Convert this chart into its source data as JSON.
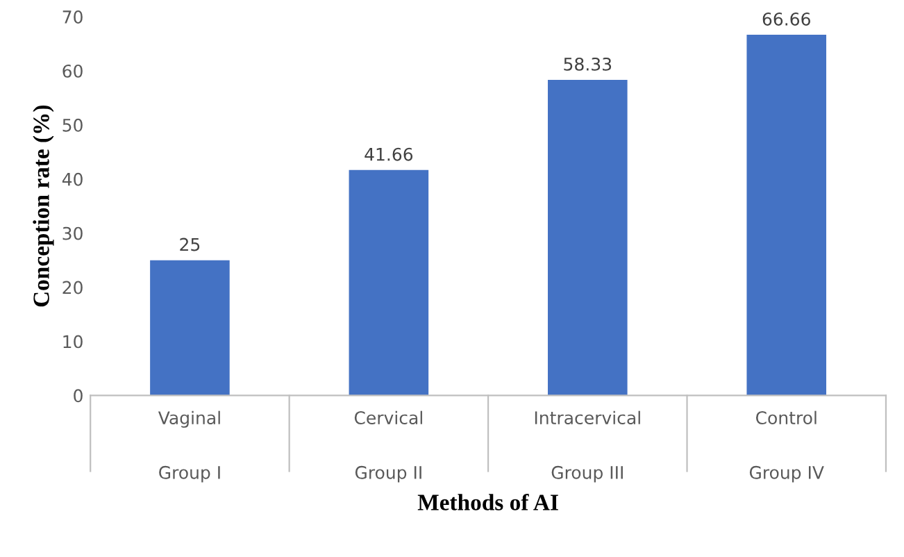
{
  "chart_data": {
    "type": "bar",
    "xlabel": "Methods of AI",
    "ylabel": "Conception rate (%)",
    "categories": [
      "Vaginal\n\nGroup I",
      "Cervical\n\nGroup II",
      "Intracervical\n\nGroup III",
      "Control\n\nGroup IV"
    ],
    "values": [
      25,
      41.66,
      58.33,
      66.66
    ],
    "color": "#4472c4",
    "ylim": [
      0,
      70
    ],
    "yticks": [
      0,
      10,
      20,
      30,
      40,
      50,
      60,
      70
    ],
    "grid": false,
    "data_labels": true
  }
}
